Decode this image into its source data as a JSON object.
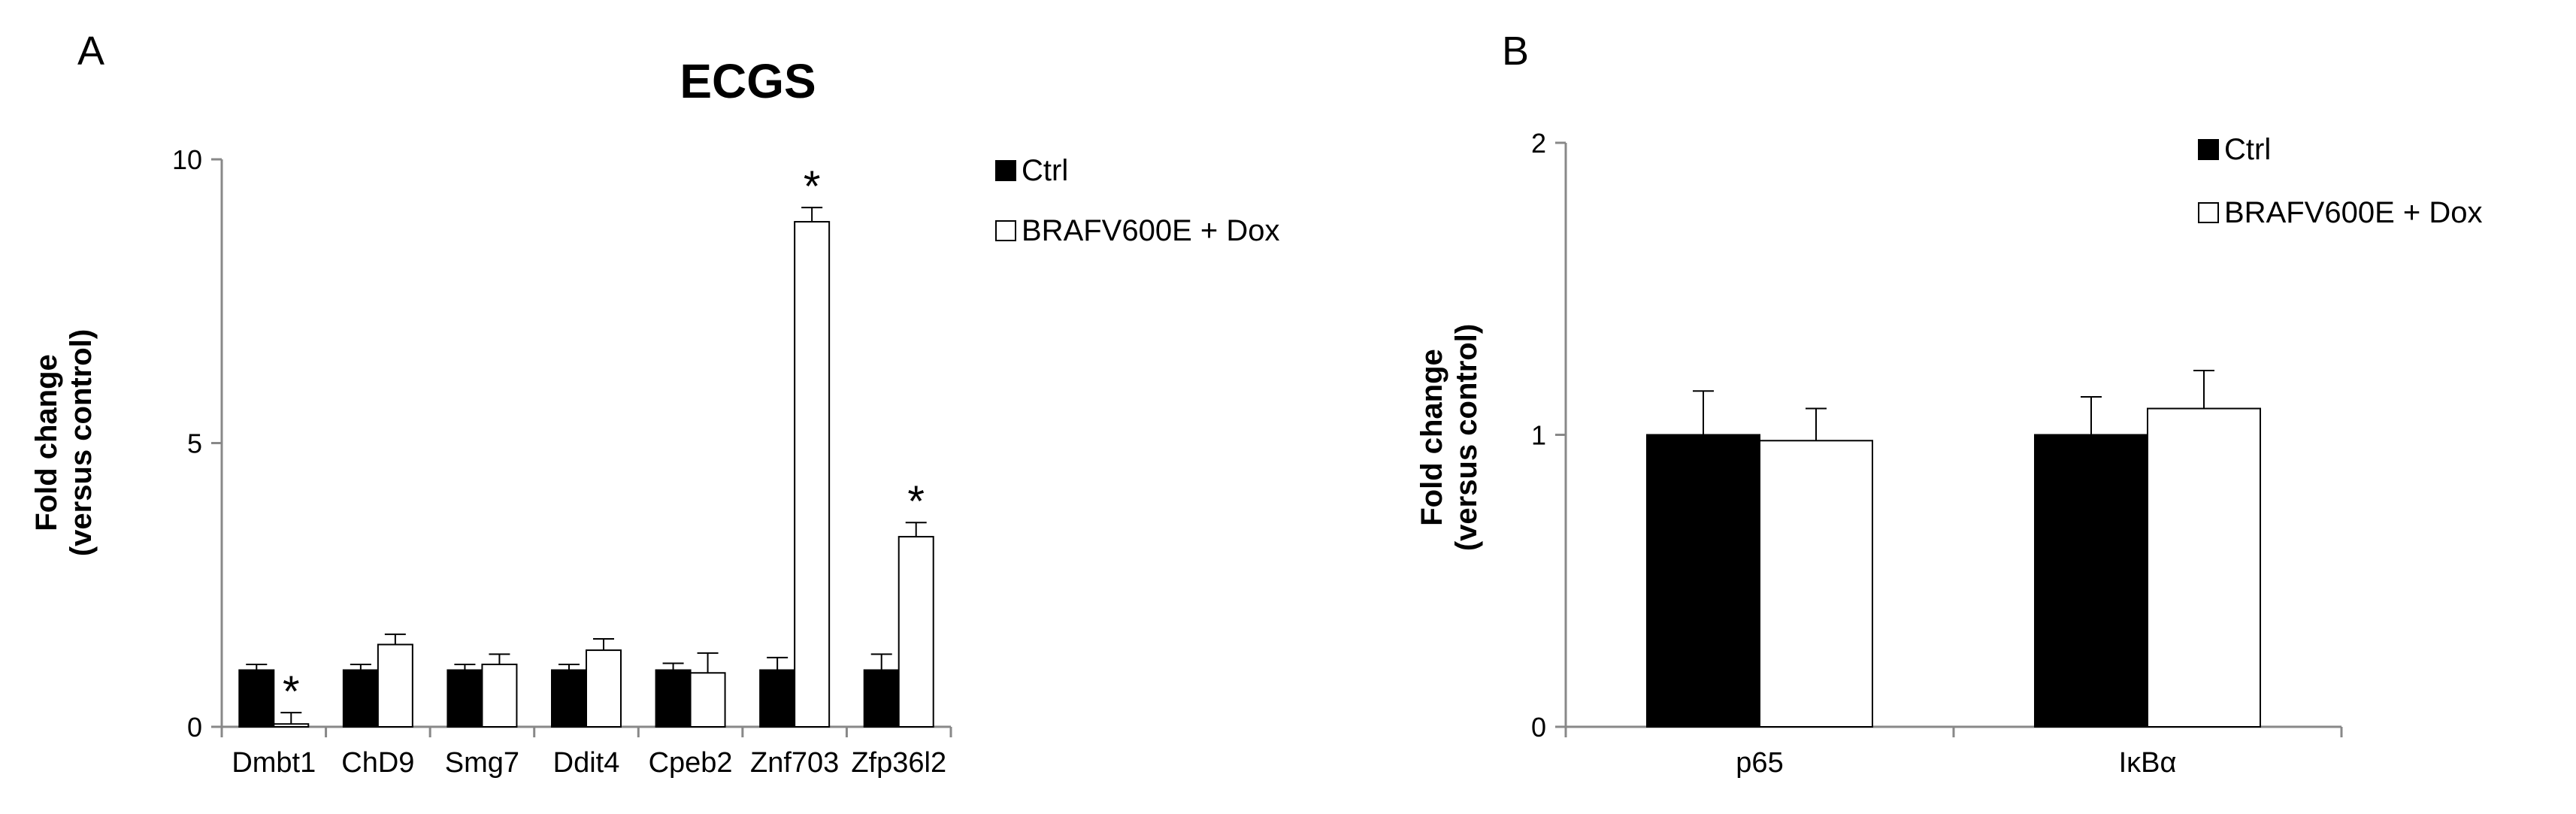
{
  "chart_data": [
    {
      "type": "bar",
      "panel_label": "A",
      "title": "ECGS",
      "ylabel": [
        "Fold change",
        "(versus control)"
      ],
      "ylim": [
        0,
        10
      ],
      "yticks": [
        "0",
        "5",
        "10"
      ],
      "categories": [
        "Dmbt1",
        "ChD9",
        "Smg7",
        "Ddit4",
        "Cpeb2",
        "Znf703",
        "Zfp36l2"
      ],
      "series": [
        {
          "name": "Ctrl",
          "fill": "#000000",
          "values": [
            1.0,
            1.0,
            1.0,
            1.0,
            1.0,
            1.0,
            1.0
          ],
          "errors": [
            0.1,
            0.1,
            0.1,
            0.1,
            0.12,
            0.22,
            0.28
          ]
        },
        {
          "name": "BRAFV600E + Dox",
          "fill": "#ffffff",
          "values": [
            0.05,
            1.45,
            1.1,
            1.35,
            0.95,
            8.9,
            3.35
          ],
          "errors": [
            0.2,
            0.18,
            0.18,
            0.2,
            0.35,
            0.25,
            0.25
          ]
        }
      ],
      "significance": [
        {
          "category": "Dmbt1",
          "series": "BRAFV600E + Dox",
          "mark": "*"
        },
        {
          "category": "Znf703",
          "series": "BRAFV600E + Dox",
          "mark": "*"
        },
        {
          "category": "Zfp36l2",
          "series": "BRAFV600E + Dox",
          "mark": "*"
        }
      ],
      "legend": {
        "position": "top-right",
        "entries": [
          "Ctrl",
          "BRAFV600E + Dox"
        ]
      }
    },
    {
      "type": "bar",
      "panel_label": "B",
      "title": "",
      "ylabel": [
        "Fold change",
        "(versus control)"
      ],
      "ylim": [
        0,
        2
      ],
      "yticks": [
        "0",
        "1",
        "2"
      ],
      "categories": [
        "p65",
        "IκBα"
      ],
      "series": [
        {
          "name": "Ctrl",
          "fill": "#000000",
          "values": [
            1.0,
            1.0
          ],
          "errors": [
            0.15,
            0.13
          ]
        },
        {
          "name": "BRAFV600E + Dox",
          "fill": "#ffffff",
          "values": [
            0.98,
            1.09
          ],
          "errors": [
            0.11,
            0.13
          ]
        }
      ],
      "significance": [],
      "legend": {
        "position": "top-right",
        "entries": [
          "Ctrl",
          "BRAFV600E + Dox"
        ]
      }
    }
  ]
}
